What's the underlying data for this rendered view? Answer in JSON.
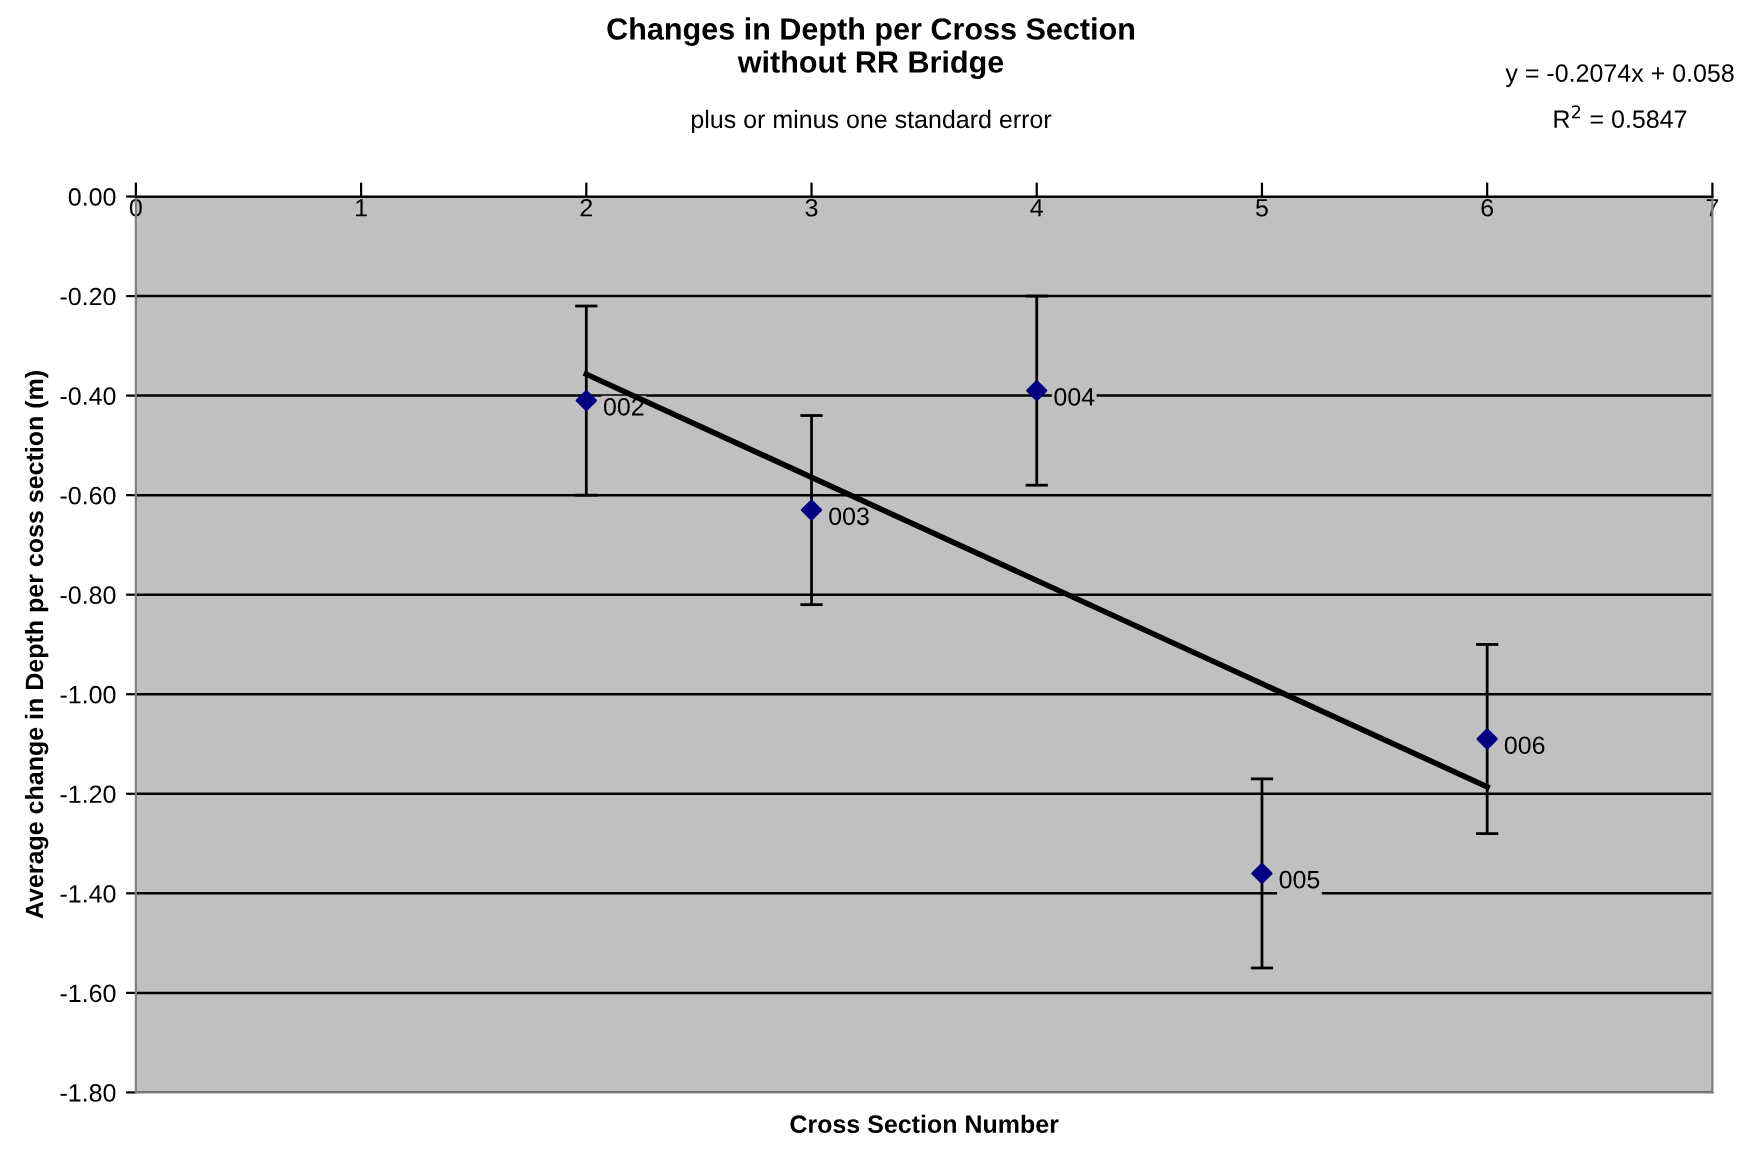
{
  "chart_data": {
    "type": "scatter",
    "title": "Changes in Depth per Cross Section\nwithout RR Bridge",
    "subtitle": "plus or minus one standard error",
    "xlabel": "Cross Section Number",
    "ylabel": "Average change in Depth per coss section (m)",
    "series": [
      {
        "color": "#000080",
        "x": [
          2,
          3,
          4,
          5,
          6
        ],
        "values": [
          -0.41,
          -0.63,
          -0.39,
          -1.36,
          -1.09
        ],
        "errors": [
          0.19,
          0.19,
          0.19,
          0.19,
          0.19
        ],
        "marker": "diamond"
      },
      {
        "type": "line",
        "color": "#000000",
        "x": [
          2,
          6
        ],
        "values": [
          -0.357,
          -1.186
        ],
        "marker": "none",
        "line_style": "solid"
      }
    ],
    "annotations": [
      {
        "text": "002",
        "x": 2,
        "y": -0.41
      },
      {
        "text": "003",
        "x": 3,
        "y": -0.63
      },
      {
        "text": "004",
        "x": 4,
        "y": -0.39
      },
      {
        "text": "005",
        "x": 5,
        "y": -1.36
      },
      {
        "text": "006",
        "x": 6,
        "y": -1.09
      },
      "y = -0.2074x + 0.058",
      "R$^{2}$ = 0.5847"
    ],
    "xlim": [
      0,
      7
    ],
    "xticks": [
      0,
      1,
      2,
      3,
      4,
      5,
      6,
      7
    ],
    "ylim": [
      -1.8,
      0
    ],
    "yticks": [
      {
        "value": 0,
        "label": "0.00"
      },
      {
        "value": -0.2,
        "label": "-0.20"
      },
      {
        "value": -0.4,
        "label": "-0.40"
      },
      {
        "value": -0.6,
        "label": "-0.60"
      },
      {
        "value": -0.8,
        "label": "-0.80"
      },
      {
        "value": -1.0,
        "label": "-1.00"
      },
      {
        "value": -1.2,
        "label": "-1.20"
      },
      {
        "value": -1.4,
        "label": "-1.40"
      },
      {
        "value": -1.6,
        "label": "-1.60"
      },
      {
        "value": -1.8,
        "label": "-1.80"
      }
    ],
    "grid": "y",
    "legend": false
  }
}
